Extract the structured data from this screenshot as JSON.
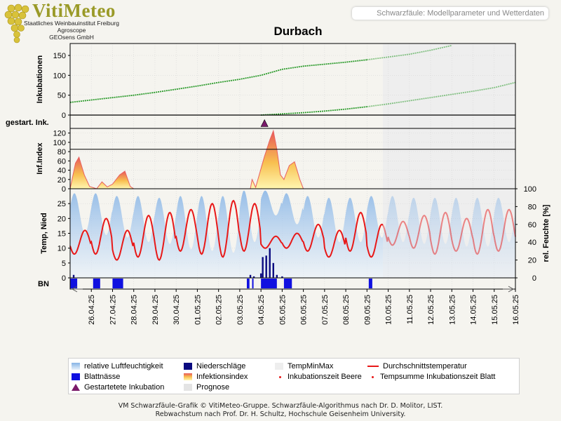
{
  "header": {
    "logo_title": "VitiMeteo",
    "logo_lines": [
      "Staatliches Weinbauinstitut Freiburg",
      "Agroscope",
      "GEOsens GmbH"
    ],
    "box_text": "Schwarzfäule: Modellparameter und Wetterdaten"
  },
  "chart_data": {
    "type": "line",
    "title": "Durbach",
    "x_dates": [
      "26.04.25",
      "27.04.25",
      "28.04.25",
      "29.04.25",
      "30.04.25",
      "01.05.25",
      "02.05.25",
      "03.05.25",
      "04.05.25",
      "05.05.25",
      "06.05.25",
      "07.05.25",
      "08.05.25",
      "09.05.25",
      "10.05.25",
      "11.05.25",
      "12.05.25",
      "13.05.25",
      "14.05.25",
      "15.05.25",
      "16.05.25"
    ],
    "x_range": [
      "25.04.25",
      "16.05.25"
    ],
    "forecast_start": "09.05.25 18:00",
    "panels": {
      "inkubationen": {
        "ylabel": "Inkubationen",
        "ylim": [
          0,
          180
        ],
        "yticks": [
          0,
          50,
          100,
          150
        ],
        "series": [
          {
            "name": "Tempsumme Inkubationszeit Blatt",
            "color": "#2a9a2a",
            "points": [
              [
                "25.04.25",
                32
              ],
              [
                "26.04.25",
                38
              ],
              [
                "27.04.25",
                44
              ],
              [
                "28.04.25",
                50
              ],
              [
                "29.04.25",
                57
              ],
              [
                "30.04.25",
                65
              ],
              [
                "01.05.25",
                73
              ],
              [
                "02.05.25",
                82
              ],
              [
                "03.05.25",
                90
              ],
              [
                "04.05.25",
                100
              ],
              [
                "05.05.25",
                115
              ],
              [
                "06.05.25",
                123
              ],
              [
                "07.05.25",
                128
              ],
              [
                "08.05.25",
                133
              ],
              [
                "09.05.25",
                139
              ],
              [
                "10.05.25",
                146
              ],
              [
                "11.05.25",
                153
              ],
              [
                "12.05.25",
                163
              ],
              [
                "13.05.25",
                175
              ]
            ]
          },
          {
            "name": "Inkubationszeit Beere",
            "color": "#2a9a2a",
            "points": [
              [
                "04.05.25",
                0
              ],
              [
                "05.05.25",
                3
              ],
              [
                "06.05.25",
                6
              ],
              [
                "07.05.25",
                10
              ],
              [
                "08.05.25",
                15
              ],
              [
                "09.05.25",
                21
              ],
              [
                "10.05.25",
                28
              ],
              [
                "11.05.25",
                36
              ],
              [
                "12.05.25",
                44
              ],
              [
                "13.05.25",
                52
              ],
              [
                "14.05.25",
                60
              ],
              [
                "15.05.25",
                69
              ],
              [
                "16.05.25",
                82
              ]
            ]
          }
        ]
      },
      "gestartete_inkubation": {
        "ylabel": "gestart. Ink.",
        "events": [
          "04.05.25 04:00"
        ]
      },
      "infektionsindex": {
        "ylabel": "Inf.Index",
        "ylim": [
          0,
          130
        ],
        "yticks": [
          0,
          20,
          40,
          60,
          80,
          100,
          120
        ],
        "threshold": 85,
        "points": [
          [
            "25.04.25 00:00",
            0
          ],
          [
            "25.04.25 06:00",
            55
          ],
          [
            "25.04.25 10:00",
            68
          ],
          [
            "25.04.25 16:00",
            30
          ],
          [
            "25.04.25 22:00",
            5
          ],
          [
            "26.04.25 06:00",
            0
          ],
          [
            "26.04.25 12:00",
            15
          ],
          [
            "26.04.25 18:00",
            4
          ],
          [
            "27.04.25 00:00",
            10
          ],
          [
            "27.04.25 08:00",
            30
          ],
          [
            "27.04.25 14:00",
            38
          ],
          [
            "27.04.25 20:00",
            5
          ],
          [
            "28.04.25 00:00",
            0
          ],
          [
            "03.05.25 12:00",
            0
          ],
          [
            "03.05.25 14:00",
            20
          ],
          [
            "03.05.25 18:00",
            3
          ],
          [
            "03.05.25 22:00",
            30
          ],
          [
            "04.05.25 04:00",
            70
          ],
          [
            "04.05.25 10:00",
            105
          ],
          [
            "04.05.25 14:00",
            125
          ],
          [
            "04.05.25 18:00",
            85
          ],
          [
            "04.05.25 22:00",
            30
          ],
          [
            "05.05.25 02:00",
            20
          ],
          [
            "05.05.25 08:00",
            50
          ],
          [
            "05.05.25 14:00",
            58
          ],
          [
            "05.05.25 20:00",
            20
          ],
          [
            "06.05.25 00:00",
            0
          ]
        ]
      },
      "wetter": {
        "ylabel_left": "Temp, Nied",
        "ylim_left": [
          0,
          30
        ],
        "yticks_left": [
          0,
          5,
          10,
          15,
          20,
          25
        ],
        "ylabel_right": "rel. Feuchte [%]",
        "ylim_right": [
          0,
          100
        ],
        "yticks_right": [
          0,
          20,
          40,
          60,
          80,
          100
        ],
        "temperature_daily_min_max": [
          [
            8,
            16
          ],
          [
            8,
            20
          ],
          [
            6,
            16
          ],
          [
            7,
            21
          ],
          [
            6,
            22
          ],
          [
            9,
            23
          ],
          [
            8,
            25
          ],
          [
            7,
            26
          ],
          [
            9,
            25
          ],
          [
            10,
            14
          ],
          [
            10,
            15
          ],
          [
            9,
            18
          ],
          [
            7,
            16
          ],
          [
            9,
            22
          ],
          [
            7,
            18
          ],
          [
            11,
            19
          ],
          [
            10,
            21
          ],
          [
            8,
            22
          ],
          [
            9,
            20
          ],
          [
            8,
            23
          ],
          [
            9,
            23
          ]
        ],
        "humidity_daily_min_max": [
          [
            50,
            95
          ],
          [
            48,
            95
          ],
          [
            45,
            92
          ],
          [
            40,
            92
          ],
          [
            38,
            90
          ],
          [
            32,
            92
          ],
          [
            30,
            92
          ],
          [
            28,
            92
          ],
          [
            40,
            98
          ],
          [
            70,
            98
          ],
          [
            60,
            95
          ],
          [
            45,
            92
          ],
          [
            40,
            90
          ],
          [
            40,
            90
          ],
          [
            45,
            92
          ],
          [
            40,
            92
          ],
          [
            38,
            90
          ],
          [
            38,
            90
          ],
          [
            35,
            90
          ],
          [
            35,
            90
          ],
          [
            40,
            90
          ]
        ],
        "precipitation": [
          [
            "25.04.25 04:00",
            1
          ],
          [
            "03.05.25 12:00",
            1
          ],
          [
            "03.05.25 16:00",
            0.5
          ],
          [
            "04.05.25 00:00",
            1.5
          ],
          [
            "04.05.25 02:00",
            7
          ],
          [
            "04.05.25 06:00",
            7.5
          ],
          [
            "04.05.25 10:00",
            10
          ],
          [
            "04.05.25 14:00",
            5
          ],
          [
            "04.05.25 18:00",
            1
          ],
          [
            "05.05.25 00:00",
            0.5
          ]
        ]
      },
      "blattnaesse": {
        "label": "BN",
        "intervals": [
          [
            "25.04.25 00:00",
            "25.04.25 08:00"
          ],
          [
            "26.04.25 02:00",
            "26.04.25 10:00"
          ],
          [
            "27.04.25 00:00",
            "27.04.25 12:00"
          ],
          [
            "03.05.25 08:00",
            "03.05.25 11:00"
          ],
          [
            "03.05.25 14:00",
            "03.05.25 15:00"
          ],
          [
            "04.05.25 00:00",
            "04.05.25 18:00"
          ],
          [
            "05.05.25 02:00",
            "05.05.25 11:00"
          ],
          [
            "09.05.25 02:00",
            "09.05.25 06:00"
          ]
        ]
      }
    },
    "legend": [
      {
        "label": "relative Luftfeuchtigkeit",
        "kind": "humidity"
      },
      {
        "label": "Niederschläge",
        "kind": "rain"
      },
      {
        "label": "TempMinMax",
        "kind": "tempminmax"
      },
      {
        "label": "Durchschnittstemperatur",
        "kind": "avgtemp"
      },
      {
        "label": "Blattnässe",
        "kind": "leafwet"
      },
      {
        "label": "Infektionsindex",
        "kind": "infindex"
      },
      {
        "label": "Inkubationszeit Beere",
        "kind": "dot"
      },
      {
        "label": "Tempsumme Inkubationszeit Blatt",
        "kind": "dot"
      },
      {
        "label": "Gestartetete Inkubation",
        "kind": "triangle"
      },
      {
        "label": "Prognose",
        "kind": "forecast"
      }
    ],
    "colors": {
      "temperature": "#e81818",
      "humidity": "#8cb8e8",
      "rain": "#0a0a80",
      "leaf_wetness": "#1010e0",
      "incubation": "#2a9a2a",
      "forecast_bg": "#eeeeee",
      "infection_top": "#e86060",
      "infection_bottom": "#fff6b0",
      "triangle": "#7a1a6a"
    }
  },
  "footer": {
    "line1": "VM Schwarzfäule-Grafik © VitiMeteo-Gruppe. Schwarzfäule-Algorithmus nach Dr. D. Molitor, LIST.",
    "line2": "Rebwachstum nach Prof. Dr. H. Schultz, Hochschule Geisenheim University."
  }
}
